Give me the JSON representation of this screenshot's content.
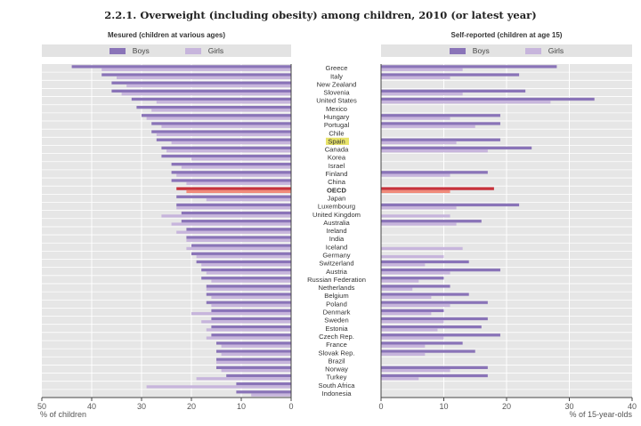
{
  "chart_data": {
    "type": "bar",
    "title": "2.2.1. Overweight (including obesity) among children, 2010 (or latest year)",
    "categories": [
      "Greece",
      "Italy",
      "New Zealand",
      "Slovenia",
      "United States",
      "Mexico",
      "Hungary",
      "Portugal",
      "Chile",
      "Spain",
      "Canada",
      "Korea",
      "Israel",
      "Finland",
      "China",
      "OECD",
      "Japan",
      "Luxembourg",
      "United Kingdom",
      "Australia",
      "Ireland",
      "India",
      "Iceland",
      "Germany",
      "Switzerland",
      "Austria",
      "Russian Federation",
      "Netherlands",
      "Belgium",
      "Poland",
      "Denmark",
      "Sweden",
      "Estonia",
      "Czech Rep.",
      "France",
      "Slovak Rep.",
      "Brazil",
      "Norway",
      "Turkey",
      "South Africa",
      "Indonesia"
    ],
    "highlight": {
      "category": "Spain",
      "color": "#e8e36a"
    },
    "emphasis": {
      "category": "OECD",
      "boys_color": "#c8323c",
      "girls_color": "#f08a7a"
    },
    "panels": [
      {
        "name": "measured",
        "subtitle": "Mesured (children at various ages)",
        "xlabel": "% of children",
        "xlim": [
          0,
          50
        ],
        "ticks": [
          50,
          40,
          30,
          20,
          10,
          0
        ],
        "direction": "reversed",
        "legend": {
          "boys": "Boys",
          "girls": "Girls"
        },
        "series": [
          {
            "name": "Boys",
            "values": [
              44,
              38,
              36,
              36,
              32,
              31,
              30,
              28,
              28,
              27,
              26,
              26,
              24,
              24,
              24,
              23,
              23,
              23,
              22,
              22,
              21,
              21,
              20,
              20,
              19,
              18,
              18,
              17,
              17,
              17,
              16,
              16,
              16,
              16,
              15,
              15,
              15,
              15,
              13,
              11,
              11
            ]
          },
          {
            "name": "Girls",
            "values": [
              38,
              35,
              33,
              34,
              27,
              28,
              29,
              26,
              27,
              24,
              25,
              20,
              22,
              23,
              21,
              21,
              17,
              23,
              26,
              24,
              23,
              21,
              21,
              19,
              18,
              17,
              16,
              17,
              16,
              16,
              20,
              18,
              17,
              17,
              14,
              14,
              15,
              14,
              19,
              29,
              8
            ]
          }
        ]
      },
      {
        "name": "self-reported",
        "subtitle": "Self-reported (children at age 15)",
        "xlabel": "% of 15-year-olds",
        "xlim": [
          0,
          40
        ],
        "ticks": [
          0,
          10,
          20,
          30,
          40
        ],
        "direction": "normal",
        "legend": {
          "boys": "Boys",
          "girls": "Girls"
        },
        "series": [
          {
            "name": "Boys",
            "values": [
              28,
              22,
              null,
              23,
              34,
              null,
              19,
              19,
              null,
              19,
              24,
              null,
              null,
              17,
              null,
              18,
              null,
              22,
              null,
              16,
              null,
              null,
              null,
              null,
              14,
              19,
              10,
              11,
              14,
              17,
              10,
              17,
              16,
              19,
              13,
              15,
              null,
              17,
              17,
              null,
              null
            ]
          },
          {
            "name": "Girls",
            "values": [
              13,
              11,
              null,
              13,
              27,
              null,
              11,
              15,
              null,
              12,
              17,
              null,
              null,
              11,
              null,
              11,
              null,
              12,
              11,
              12,
              null,
              null,
              13,
              10,
              7,
              11,
              6,
              5,
              8,
              11,
              8,
              10,
              9,
              10,
              7,
              7,
              null,
              11,
              6,
              null,
              null
            ]
          }
        ]
      }
    ],
    "colors": {
      "boys": "#8a74b8",
      "girls": "#c7b5dc",
      "plot_bg": "#e6e6e6",
      "grid": "#ffffff"
    }
  }
}
